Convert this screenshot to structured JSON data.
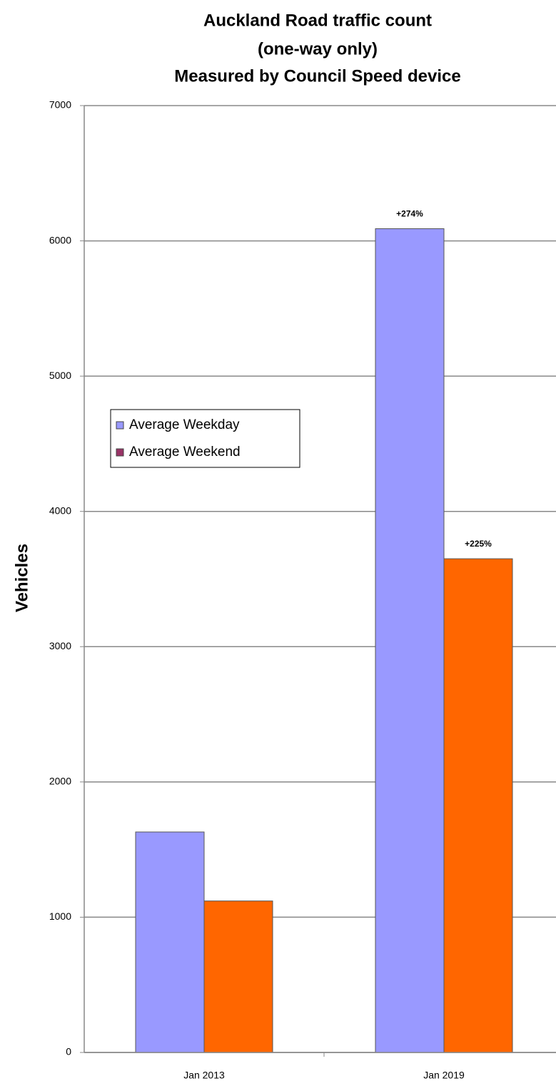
{
  "chart_data": {
    "type": "bar",
    "title": [
      "Auckland Road traffic count",
      "(one-way only)",
      "Measured by Council Speed device"
    ],
    "y_label": "Vehicles",
    "categories": [
      "Jan 2013",
      "Jan 2019"
    ],
    "series": [
      {
        "name": "Average Weekday",
        "color": "#9999ff",
        "values": [
          1630,
          6090
        ]
      },
      {
        "name": "Average Weekend",
        "color": "#ff6600",
        "legend_color": "#993366",
        "values": [
          1120,
          3650
        ]
      }
    ],
    "annotations": [
      {
        "text": "+274%",
        "series": "Average Weekday",
        "category": "Jan 2019"
      },
      {
        "text": "+225%",
        "series": "Average Weekend",
        "category": "Jan 2019"
      }
    ],
    "ylim": [
      0,
      7000
    ],
    "yticks": [
      0,
      1000,
      2000,
      3000,
      4000,
      5000,
      6000,
      7000
    ],
    "grid": true,
    "legend": "left"
  }
}
